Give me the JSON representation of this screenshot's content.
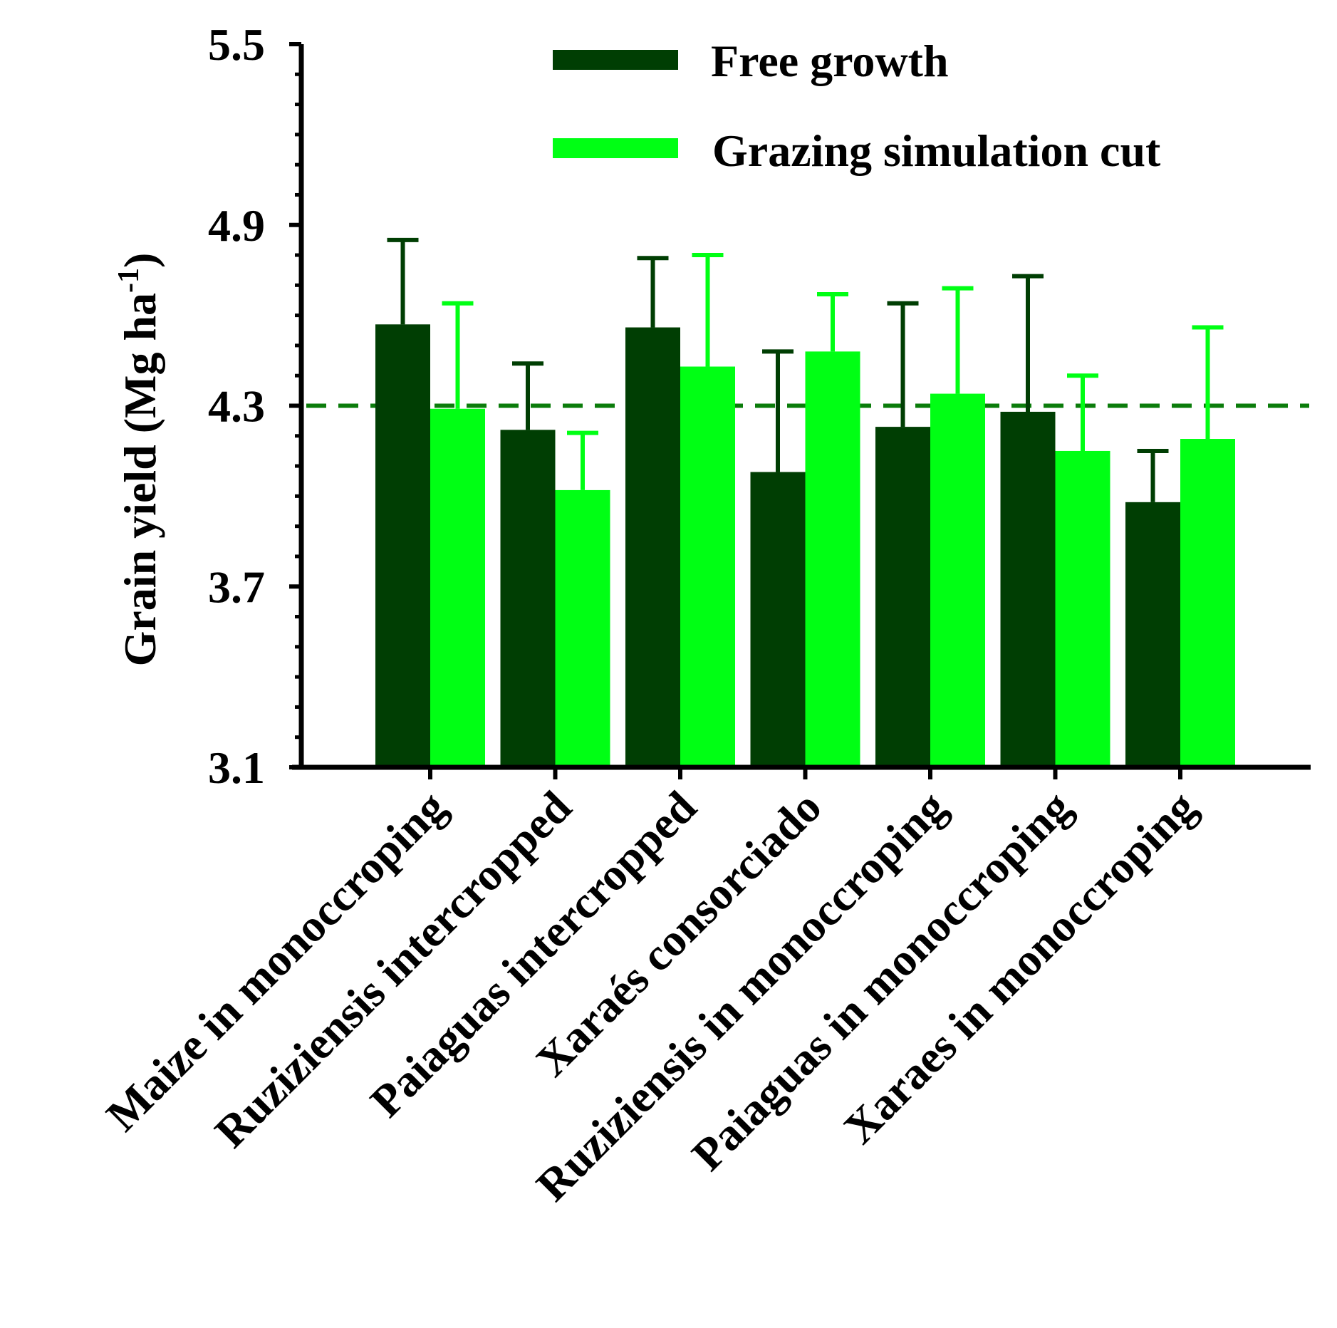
{
  "chart_data": {
    "type": "bar",
    "title": "",
    "xlabel": "",
    "ylabel": "Grain yield (Mg ha",
    "ylabel_sup": "-1",
    "ylabel_close": ")",
    "ylim": [
      3.1,
      5.5
    ],
    "yticks": [
      "3.1",
      "3.7",
      "4.3",
      "4.9",
      "5.5"
    ],
    "reference_line": 4.3,
    "legend_position": "top-right",
    "categories": [
      "Maize in monoccroping",
      "Ruziziensis  intercropped",
      "Paiaguas intercropped",
      "Xaraés consorciado",
      "Ruziziensis in monoccroping",
      "Paiaguas in monoccroping",
      "Xaraes in monoccroping"
    ],
    "series": [
      {
        "name": "Free growth",
        "color": "#003e03",
        "values": [
          4.57,
          4.22,
          4.56,
          4.08,
          4.23,
          4.28,
          3.98
        ],
        "errors": [
          0.28,
          0.22,
          0.23,
          0.4,
          0.41,
          0.45,
          0.17
        ]
      },
      {
        "name": "Grazing simulation cut",
        "color": "#00ff14",
        "values": [
          4.29,
          4.02,
          4.43,
          4.48,
          4.34,
          4.15,
          4.19
        ],
        "errors": [
          0.35,
          0.19,
          0.37,
          0.19,
          0.35,
          0.25,
          0.37
        ]
      }
    ]
  }
}
